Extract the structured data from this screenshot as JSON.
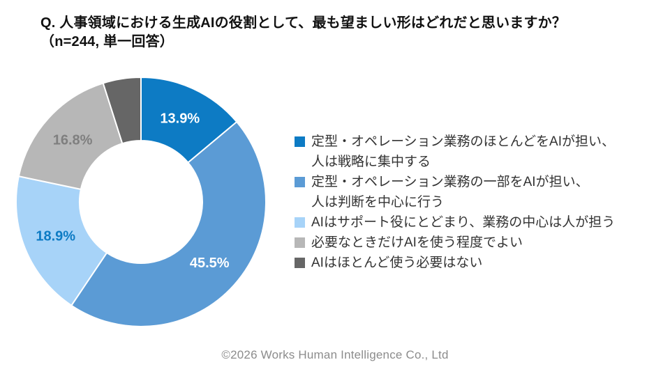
{
  "header": {
    "line1": "Q. 人事領域における生成AIの役割として、最も望ましい形はどれだと思いますか？",
    "line2": "（n=244, 単一回答）"
  },
  "chart_data": {
    "type": "pie",
    "subtype": "donut",
    "title": "Q. 人事領域における生成AIの役割として、最も望ましい形はどれだと思いますか？（n=244, 単一回答）",
    "sample_note": "n=244, 単一回答",
    "start_angle_deg": 0,
    "direction": "clockwise",
    "inner_radius_ratio": 0.49,
    "legend_position": "right",
    "segments": [
      {
        "label": "定型・オペレーション業務のほとんどをAIが担い、人は戦略に集中する",
        "legend_lines": [
          "定型・オペレーション業務のほとんどをAIが担い、",
          "人は戦略に集中する"
        ],
        "value": 13.9,
        "display": "13.9%",
        "color": "#0d7bc4",
        "label_color": "#ffffff"
      },
      {
        "label": "定型・オペレーション業務の一部をAIが担い、人は判断を中心に行う",
        "legend_lines": [
          "定型・オペレーション業務の一部をAIが担い、",
          "人は判断を中心に行う"
        ],
        "value": 45.5,
        "display": "45.5%",
        "color": "#5b9bd5",
        "label_color": "#ffffff"
      },
      {
        "label": "AIはサポート役にとどまり、業務の中心は人が担う",
        "legend_lines": [
          "AIはサポート役にとどまり、業務の中心は人が担う"
        ],
        "value": 18.9,
        "display": "18.9%",
        "color": "#a7d3f8",
        "label_color": "#0d7bc4"
      },
      {
        "label": "必要なときだけAIを使う程度でよい",
        "legend_lines": [
          "必要なときだけAIを使う程度でよい"
        ],
        "value": 16.8,
        "display": "16.8%",
        "color": "#b7b7b7",
        "label_color": "#7f7f7f"
      },
      {
        "label": "AIはほとんど使う必要はない",
        "legend_lines": [
          "AIはほとんど使う必要はない"
        ],
        "value": 4.9,
        "display": "",
        "color": "#666666",
        "label_color": "#ffffff"
      }
    ]
  },
  "footer": {
    "copyright": "©2026 Works Human Intelligence Co., Ltd"
  }
}
